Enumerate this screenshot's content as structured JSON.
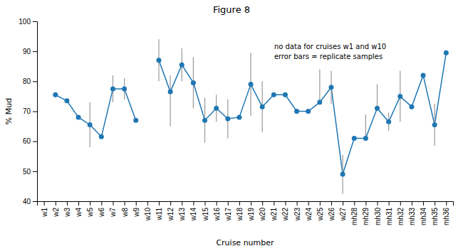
{
  "chart_data": {
    "type": "line",
    "title": "Figure 8",
    "x_label": "Cruise number",
    "y_label": "% Mud",
    "categories": [
      "w1",
      "w2",
      "w3",
      "w4",
      "w5",
      "w6",
      "w7",
      "w8",
      "w9",
      "w10",
      "w11",
      "w12",
      "w13",
      "w14",
      "w15",
      "w16",
      "w17",
      "w18",
      "w19",
      "w20",
      "w21",
      "w22",
      "w23",
      "w24",
      "w25",
      "w26",
      "w27",
      "mh28",
      "mh29",
      "mh30",
      "mh31",
      "mh32",
      "mh33",
      "mh34",
      "mh35",
      "mh36"
    ],
    "values": [
      null,
      75.5,
      73.5,
      68.0,
      65.5,
      61.5,
      77.5,
      77.5,
      67.0,
      null,
      87.0,
      76.5,
      85.5,
      79.5,
      67.0,
      71.0,
      67.5,
      68.0,
      79.0,
      71.5,
      75.5,
      75.5,
      70.0,
      70.0,
      73.0,
      78.0,
      49.0,
      61.0,
      61.0,
      71.0,
      66.5,
      75.0,
      71.5,
      82.0,
      65.5,
      89.5
    ],
    "error_low": [
      null,
      0,
      0,
      0,
      7.5,
      0,
      4.5,
      3.5,
      0,
      null,
      7.0,
      11.5,
      5.5,
      8.5,
      7.5,
      4.5,
      6.5,
      0,
      10.5,
      8.5,
      0,
      0,
      0,
      0,
      0,
      5.5,
      6.5,
      0,
      0,
      0,
      3.0,
      8.5,
      0,
      0,
      7.0,
      0
    ],
    "error_high": [
      null,
      0,
      0,
      0,
      7.5,
      0,
      4.5,
      3.5,
      0,
      null,
      7.0,
      5.5,
      5.5,
      8.5,
      7.5,
      4.5,
      6.5,
      0,
      10.5,
      8.5,
      0,
      0,
      0,
      0,
      11.0,
      5.5,
      6.5,
      0,
      8.0,
      8.0,
      3.0,
      8.5,
      0,
      0,
      7.0,
      0
    ],
    "ylim": [
      40,
      100
    ],
    "yticks": [
      40,
      50,
      60,
      70,
      80,
      90,
      100
    ],
    "marker": "circle",
    "annotation": "no data for cruises w1 and w10\nerror bars = replicate samples"
  }
}
